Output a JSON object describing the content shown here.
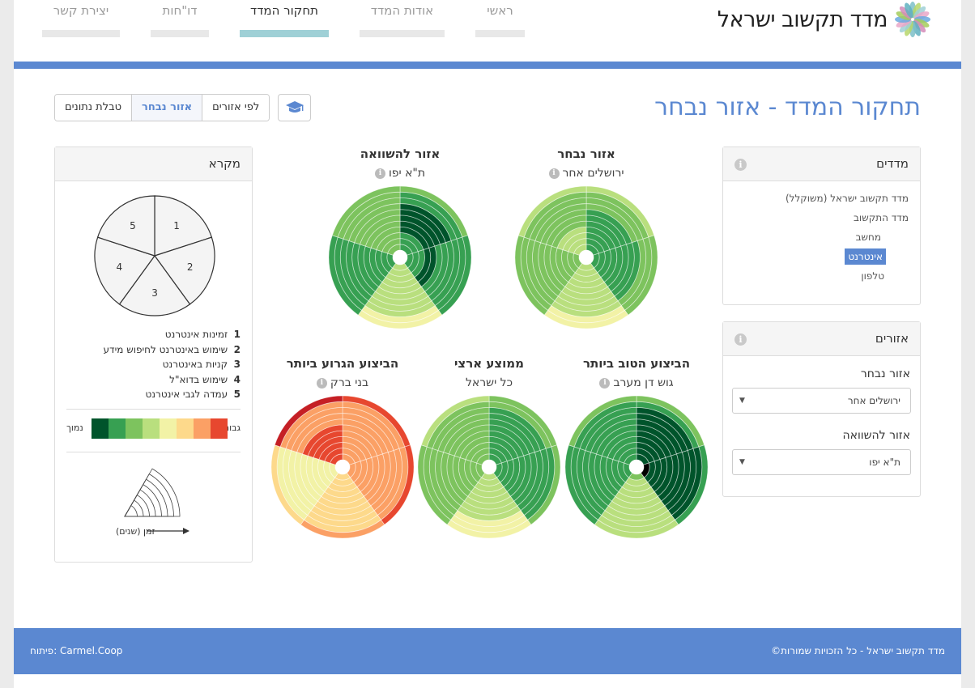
{
  "header": {
    "logo_text": "מדד תקשוב ישראל",
    "nav": [
      {
        "label": "ראשי",
        "active": false
      },
      {
        "label": "אודות המדד",
        "active": false
      },
      {
        "label": "תחקור המדד",
        "active": true
      },
      {
        "label": "דו\"חות",
        "active": false
      },
      {
        "label": "יצירת קשר",
        "active": false
      }
    ]
  },
  "page_title": "תחקור המדד - אזור נבחר",
  "view_tabs": [
    {
      "label": "לפי אזורים",
      "active": false
    },
    {
      "label": "אזור נבחר",
      "active": true
    },
    {
      "label": "טבלת נתונים",
      "active": false
    }
  ],
  "indices_panel": {
    "title": "מדדים",
    "items": [
      {
        "label": "מדד תקשוב ישראל (משוקלל)",
        "selected": false
      },
      {
        "label": "מדד התקשוב",
        "selected": false
      },
      {
        "label": "מחשב",
        "selected": false
      },
      {
        "label": "אינטרנט",
        "selected": true
      },
      {
        "label": "טלפון",
        "selected": false
      }
    ]
  },
  "regions_panel": {
    "title": "אזורים",
    "selected_label": "אזור נבחר",
    "selected_value": "ירושלים אחר",
    "compare_label": "אזור להשוואה",
    "compare_value": "ת\"א יפו"
  },
  "legend_panel": {
    "title": "מקרא",
    "items": [
      {
        "num": "1",
        "label": "זמינות אינטרנט"
      },
      {
        "num": "2",
        "label": "שימוש באינטרנט לחיפוש מידע"
      },
      {
        "num": "3",
        "label": "קניות באינטרנט"
      },
      {
        "num": "4",
        "label": "שימוש בדוא\"ל"
      },
      {
        "num": "5",
        "label": "עמדה לגבי אינטרנט"
      }
    ],
    "scale_high": "גבוה",
    "scale_low": "נמוך",
    "scale_colors": [
      "#00542b",
      "#37a052",
      "#7dc35e",
      "#b9df7e",
      "#f2f2a6",
      "#fdd98b",
      "#fba065",
      "#e7472f",
      "#c51f25"
    ],
    "time_label": "זמן (שנים)"
  },
  "charts": [
    {
      "title": "אזור נבחר",
      "subtitle": "ירושלים אחר",
      "sectors": [
        [
          7,
          7,
          7,
          7,
          7,
          7,
          7,
          6,
          6,
          6,
          5
        ],
        [
          7,
          7,
          7,
          7,
          7,
          7,
          7,
          7,
          6,
          6,
          6
        ],
        [
          5,
          5,
          5,
          5,
          5,
          5,
          5,
          5,
          5,
          4,
          4
        ],
        [
          6,
          6,
          6,
          6,
          6,
          6,
          6,
          6,
          6,
          6,
          6
        ],
        [
          5,
          5,
          5,
          5,
          6,
          6,
          6,
          6,
          6,
          6,
          5
        ]
      ]
    },
    {
      "title": "אזור להשוואה",
      "subtitle": "ת\"א יפו",
      "sectors": [
        [
          7,
          7,
          7,
          8,
          8,
          8,
          8,
          8,
          7,
          7,
          6
        ],
        [
          7,
          7,
          7,
          8,
          8,
          7,
          7,
          7,
          7,
          7,
          7
        ],
        [
          5,
          5,
          5,
          5,
          5,
          5,
          5,
          5,
          5,
          4,
          4
        ],
        [
          7,
          7,
          7,
          7,
          7,
          7,
          7,
          7,
          7,
          7,
          7
        ],
        [
          6,
          6,
          6,
          6,
          6,
          6,
          6,
          6,
          6,
          6,
          6
        ]
      ]
    },
    {
      "title": "הביצוע הטוב ביותר",
      "subtitle": "גוש דן מערב",
      "sectors": [
        [
          8,
          8,
          8,
          8,
          8,
          8,
          8,
          8,
          8,
          7,
          6
        ],
        [
          9,
          8,
          8,
          8,
          8,
          8,
          8,
          8,
          8,
          8,
          7
        ],
        [
          6,
          5,
          5,
          5,
          5,
          5,
          5,
          5,
          5,
          5,
          5
        ],
        [
          7,
          7,
          7,
          7,
          7,
          7,
          7,
          7,
          7,
          7,
          7
        ],
        [
          7,
          7,
          7,
          7,
          7,
          7,
          7,
          7,
          7,
          7,
          6
        ]
      ]
    },
    {
      "title": "ממוצע ארצי",
      "subtitle": "כל ישראל",
      "sectors": [
        [
          7,
          7,
          7,
          7,
          7,
          7,
          7,
          7,
          7,
          6,
          6
        ],
        [
          7,
          7,
          7,
          7,
          7,
          7,
          7,
          7,
          7,
          7,
          6
        ],
        [
          5,
          5,
          5,
          5,
          5,
          5,
          5,
          5,
          4,
          4,
          4
        ],
        [
          6,
          6,
          6,
          6,
          6,
          6,
          6,
          6,
          6,
          6,
          6
        ],
        [
          6,
          6,
          6,
          6,
          6,
          6,
          6,
          6,
          6,
          6,
          5
        ]
      ]
    },
    {
      "title": "הביצוע הגרוע ביותר",
      "subtitle": "בני ברק",
      "sectors": [
        [
          2,
          2,
          2,
          2,
          2,
          2,
          2,
          2,
          2,
          2,
          1
        ],
        [
          2,
          2,
          2,
          2,
          2,
          2,
          2,
          2,
          2,
          2,
          1
        ],
        [
          3,
          3,
          3,
          3,
          3,
          3,
          3,
          3,
          3,
          3,
          2
        ],
        [
          4,
          4,
          4,
          4,
          4,
          4,
          4,
          4,
          4,
          4,
          3
        ],
        [
          1,
          1,
          1,
          1,
          1,
          1,
          2,
          2,
          2,
          2,
          0
        ]
      ]
    }
  ],
  "footer": {
    "copyright": "מדד תקשוב ישראל - כל הזכויות שמורות©",
    "dev": "פיתוח: Carmel.Coop"
  }
}
